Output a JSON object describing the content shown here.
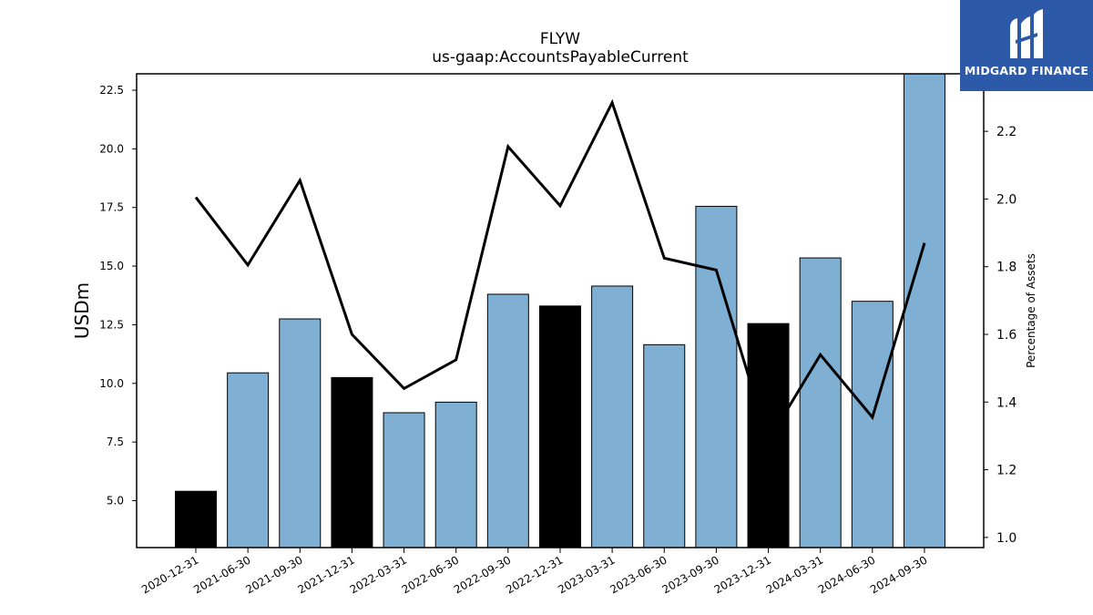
{
  "chart_data": {
    "type": "bar",
    "title": "FLYW",
    "subtitle": "us-gaap:AccountsPayableCurrent",
    "ylabel": "USDm",
    "y2label": "Percentage of Assets",
    "categories": [
      "2020-12-31",
      "2021-06-30",
      "2021-09-30",
      "2021-12-31",
      "2022-03-31",
      "2022-06-30",
      "2022-09-30",
      "2022-12-31",
      "2023-03-31",
      "2023-06-30",
      "2023-09-30",
      "2023-12-31",
      "2024-03-31",
      "2024-06-30",
      "2024-09-30"
    ],
    "series": [
      {
        "type": "bar",
        "axis": "left",
        "values": [
          5.4,
          10.45,
          12.75,
          10.25,
          8.75,
          9.2,
          13.8,
          13.3,
          14.15,
          11.65,
          17.55,
          12.55,
          15.35,
          13.5,
          23.2
        ],
        "colors": [
          "#000000",
          "#7fafd2",
          "#7fafd2",
          "#000000",
          "#7fafd2",
          "#7fafd2",
          "#7fafd2",
          "#000000",
          "#7fafd2",
          "#7fafd2",
          "#7fafd2",
          "#000000",
          "#7fafd2",
          "#7fafd2",
          "#7fafd2"
        ]
      },
      {
        "type": "line",
        "axis": "right",
        "color": "#000000",
        "values": [
          2.005,
          1.805,
          2.055,
          1.6,
          1.44,
          1.525,
          2.155,
          1.98,
          2.285,
          1.825,
          1.79,
          1.285,
          1.54,
          1.355,
          1.87
        ]
      }
    ],
    "ylim": [
      3.0,
      23.2
    ],
    "y2lim": [
      0.97,
      2.37
    ],
    "yticks": [
      "5.0",
      "7.5",
      "10.0",
      "12.5",
      "15.0",
      "17.5",
      "20.0",
      "22.5"
    ],
    "y2ticks": [
      "1.0",
      "1.2",
      "1.4",
      "1.6",
      "1.8",
      "2.0",
      "2.2"
    ],
    "grid": false
  },
  "logo": {
    "text": "MIDGARD FINANCE",
    "icon": "midgard-logo-icon",
    "color": "#2d5aa8"
  }
}
